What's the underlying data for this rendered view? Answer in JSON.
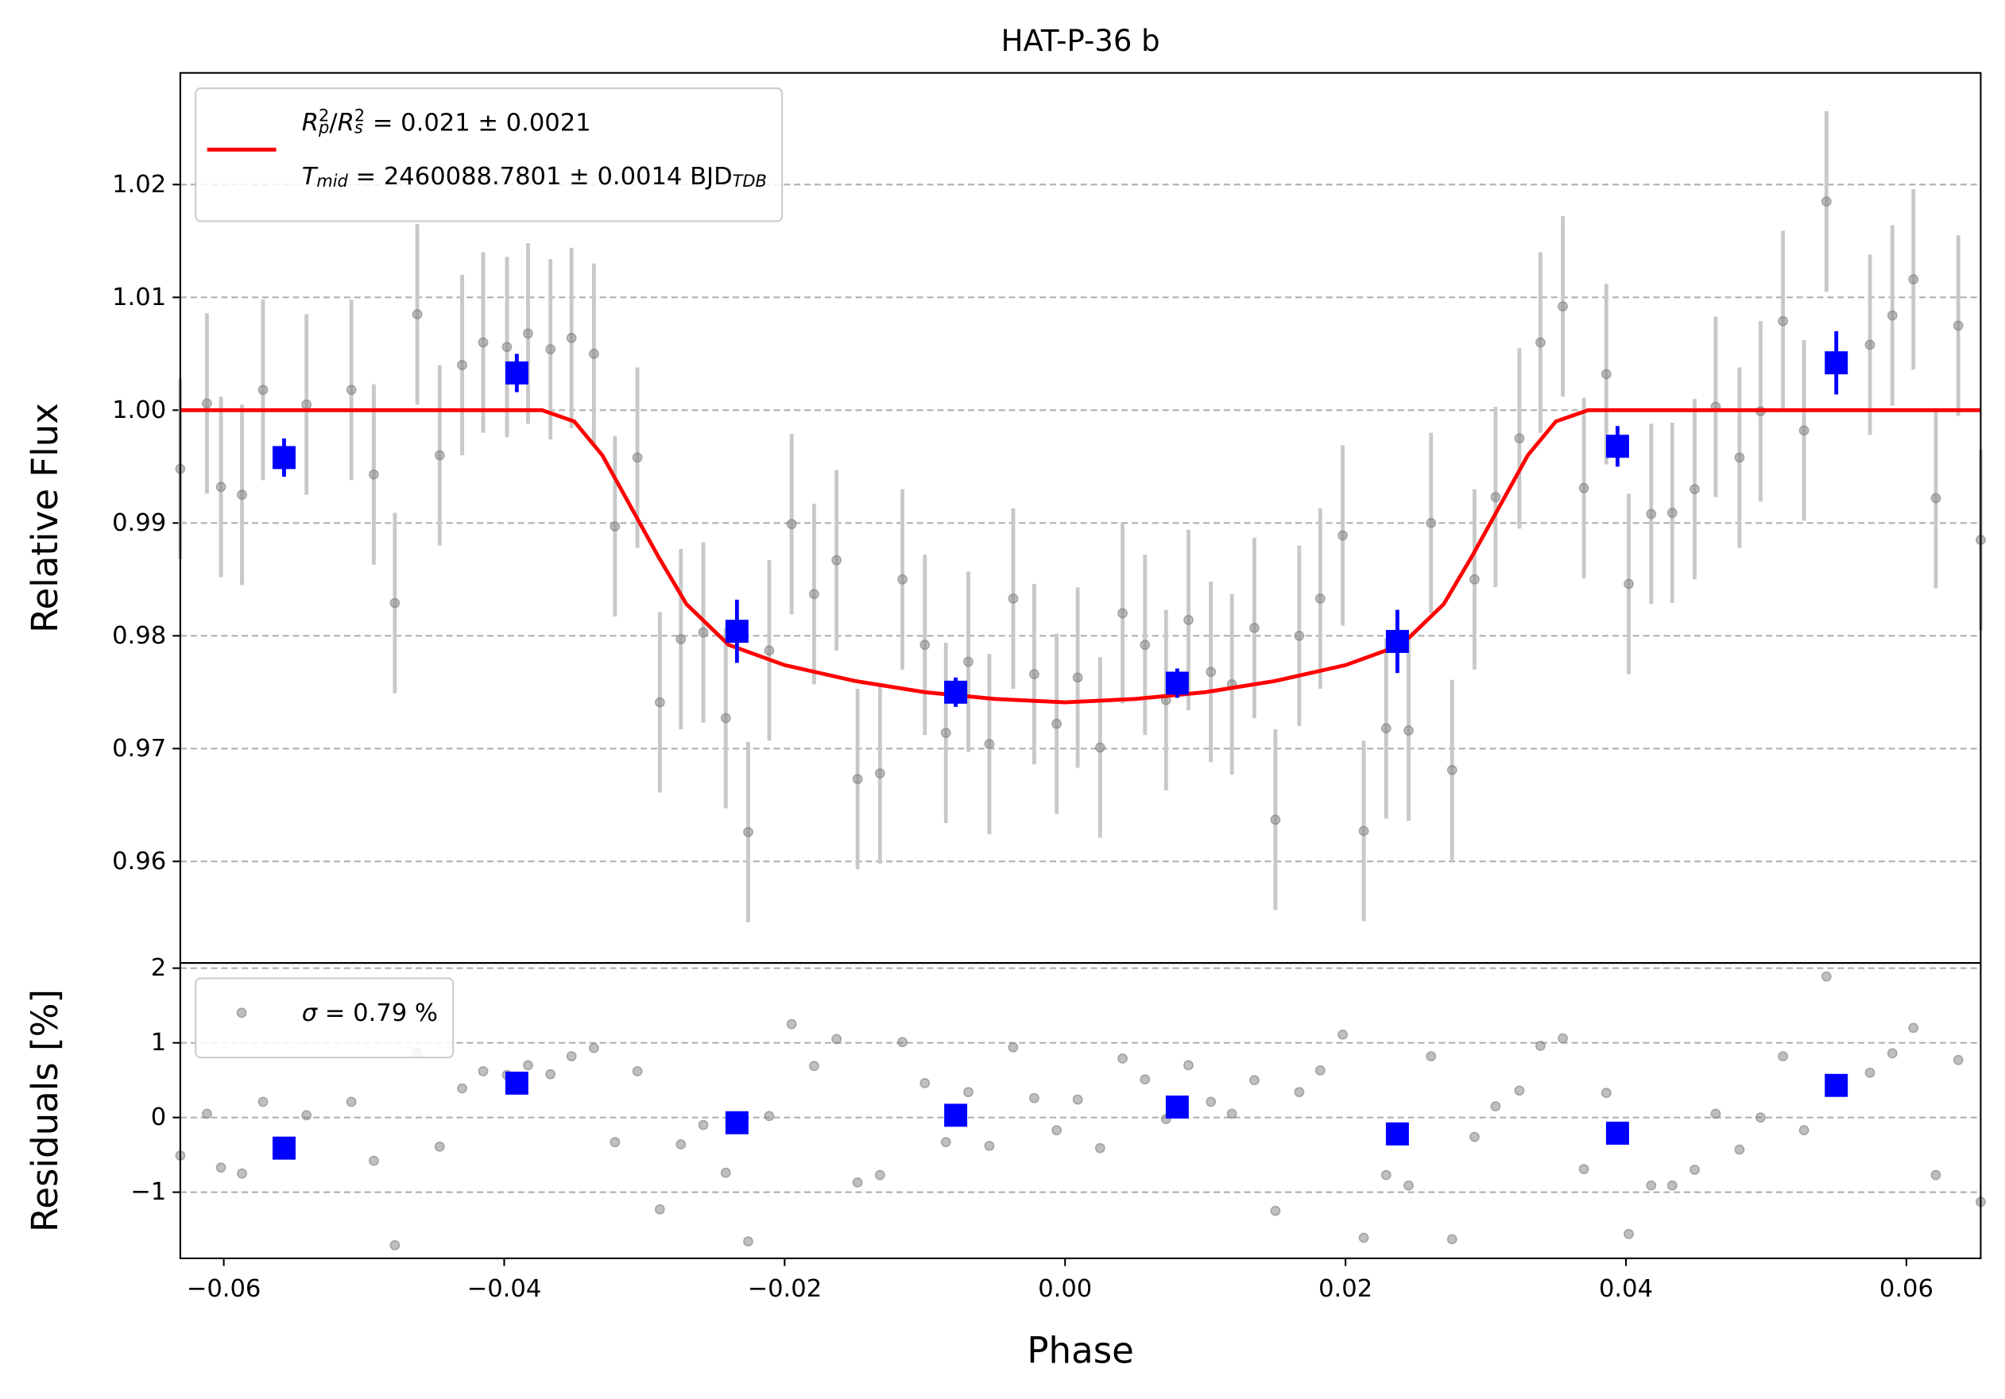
{
  "chart_data": [
    {
      "type": "scatter",
      "title": "HAT-P-36 b",
      "ylabel": "Relative Flux",
      "xlim": [
        -0.0631,
        0.0653
      ],
      "ylim": [
        0.951,
        1.0299
      ],
      "yticks": [
        0.96,
        0.97,
        0.98,
        0.99,
        {
          "value": 1.0,
          "label": "1.00"
        },
        1.01,
        1.02
      ],
      "grid": true,
      "legend": "upper left",
      "series": [
        {
          "style": "points",
          "marker": "circle",
          "color": "#808080",
          "ecolor": "#c8c8c8",
          "yerr": 0.008,
          "x": [
            -0.0631,
            -0.0612,
            -0.0602,
            -0.0587,
            -0.0572,
            -0.0541,
            -0.0509,
            -0.0493,
            -0.0478,
            -0.0462,
            -0.0446,
            -0.043,
            -0.0415,
            -0.0398,
            -0.0383,
            -0.0367,
            -0.0352,
            -0.0336,
            -0.0321,
            -0.0305,
            -0.0289,
            -0.0274,
            -0.0258,
            -0.0242,
            -0.0226,
            -0.0211,
            -0.0195,
            -0.0179,
            -0.0163,
            -0.0148,
            -0.0132,
            -0.0116,
            -0.01,
            -0.0085,
            -0.0069,
            -0.0054,
            -0.0037,
            -0.0022,
            -0.0006,
            0.0009,
            0.0025,
            0.0041,
            0.0057,
            0.0072,
            0.0088,
            0.0104,
            0.0119,
            0.0135,
            0.015,
            0.0167,
            0.0182,
            0.0198,
            0.0213,
            0.0229,
            0.0245,
            0.0261,
            0.0276,
            0.0292,
            0.0307,
            0.0324,
            0.0339,
            0.0355,
            0.037,
            0.0386,
            0.0402,
            0.0418,
            0.0433,
            0.0449,
            0.0464,
            0.0481,
            0.0496,
            0.0512,
            0.0527,
            0.0543,
            0.0574,
            0.059,
            0.0605,
            0.0621,
            0.0637,
            0.0653
          ],
          "values": [
            0.9948,
            1.0006,
            0.9932,
            0.9925,
            1.0018,
            1.0005,
            1.0018,
            0.9943,
            0.9829,
            1.0085,
            0.996,
            1.004,
            1.006,
            1.0056,
            1.0068,
            1.0054,
            1.0064,
            1.005,
            0.9897,
            0.9958,
            0.9741,
            0.9797,
            0.9803,
            0.9727,
            0.9626,
            0.9787,
            0.9899,
            0.9837,
            0.9867,
            0.9673,
            0.9678,
            0.985,
            0.9792,
            0.9714,
            0.9777,
            0.9704,
            0.9833,
            0.9766,
            0.9722,
            0.9763,
            0.9701,
            0.982,
            0.9792,
            0.9743,
            0.9814,
            0.9768,
            0.9757,
            0.9807,
            0.9637,
            0.98,
            0.9833,
            0.9889,
            0.9627,
            0.9718,
            0.9716,
            0.99,
            0.9681,
            0.985,
            0.9923,
            0.9975,
            1.006,
            1.0092,
            0.9931,
            1.0032,
            0.9846,
            0.9908,
            0.9909,
            0.993,
            1.0003,
            0.9958,
            0.9999,
            1.0079,
            0.9982,
            1.0185,
            1.0058,
            1.0084,
            1.0116,
            0.9922,
            1.0075,
            0.9885
          ]
        },
        {
          "style": "line",
          "color": "red",
          "name": [
            [
              {
                "text": "R",
                "style": "i"
              },
              {
                "text": "p",
                "style": "sub-i"
              },
              {
                "text": "2",
                "style": "sup"
              },
              {
                "text": "/",
                "style": "n"
              },
              {
                "text": "R",
                "style": "i"
              },
              {
                "text": "s",
                "style": "sub-i"
              },
              {
                "text": "2",
                "style": "sup"
              },
              {
                "text": " = 0.021 ± 0.0021",
                "style": "n"
              }
            ],
            [
              {
                "text": "T",
                "style": "i"
              },
              {
                "text": "mid",
                "style": "sub-i"
              },
              {
                "text": " = 2460088.7801 ± 0.0014 BJD",
                "style": "n"
              },
              {
                "text": "TDB",
                "style": "sub-i"
              }
            ]
          ],
          "x": [
            -0.0631,
            -0.0373,
            -0.035,
            -0.033,
            -0.031,
            -0.029,
            -0.027,
            -0.024,
            -0.02,
            -0.015,
            -0.01,
            -0.005,
            0,
            0.005,
            0.01,
            0.015,
            0.02,
            0.024,
            0.027,
            0.029,
            0.031,
            0.033,
            0.035,
            0.0373,
            0.0653
          ],
          "values": [
            1,
            1,
            0.999,
            0.996,
            0.9915,
            0.987,
            0.9828,
            0.9792,
            0.9774,
            0.976,
            0.975,
            0.9744,
            0.9741,
            0.9744,
            0.975,
            0.976,
            0.9774,
            0.9792,
            0.9828,
            0.987,
            0.9915,
            0.996,
            0.999,
            1,
            1
          ]
        },
        {
          "style": "points",
          "marker": "square",
          "color": "blue",
          "ecolor": "blue",
          "x": [
            -0.0557,
            -0.0391,
            -0.0234,
            -0.0078,
            0.008,
            0.0237,
            0.0394,
            0.055
          ],
          "values": [
            0.9958,
            1.0033,
            0.9804,
            0.975,
            0.9758,
            0.9795,
            0.9968,
            1.0042
          ],
          "yerr": [
            0.0017,
            0.0017,
            0.0028,
            0.0013,
            0.0013,
            0.0028,
            0.0018,
            0.0028
          ]
        }
      ]
    },
    {
      "type": "scatter",
      "ylabel": "Residuals [%]",
      "xlabel": "Phase",
      "xlim": [
        -0.0631,
        0.0653
      ],
      "ylim": [
        -1.886,
        2.07
      ],
      "xticks": [
        {
          "value": -0.06,
          "label": "−0.06"
        },
        {
          "value": -0.04,
          "label": "−0.04"
        },
        {
          "value": -0.02,
          "label": "−0.02"
        },
        {
          "value": 0,
          "label": "0.00"
        },
        0.02,
        0.04,
        0.06
      ],
      "yticks": [
        {
          "value": -1,
          "label": "−1"
        },
        0,
        1,
        2
      ],
      "grid": true,
      "legend": "upper left",
      "series": [
        {
          "style": "points",
          "marker": "circle",
          "color": "#808080",
          "name": [
            [
              {
                "text": "σ",
                "style": "i"
              },
              {
                "text": " = 0.79 %",
                "style": "n"
              }
            ]
          ],
          "x": [
            -0.0631,
            -0.0612,
            -0.0602,
            -0.0587,
            -0.0572,
            -0.0541,
            -0.0509,
            -0.0493,
            -0.0478,
            -0.0462,
            -0.0446,
            -0.043,
            -0.0415,
            -0.0398,
            -0.0383,
            -0.0367,
            -0.0352,
            -0.0336,
            -0.0321,
            -0.0305,
            -0.0289,
            -0.0274,
            -0.0258,
            -0.0242,
            -0.0226,
            -0.0211,
            -0.0195,
            -0.0179,
            -0.0163,
            -0.0148,
            -0.0132,
            -0.0116,
            -0.01,
            -0.0085,
            -0.0069,
            -0.0054,
            -0.0037,
            -0.0022,
            -0.0006,
            0.0009,
            0.0025,
            0.0041,
            0.0057,
            0.0072,
            0.0088,
            0.0104,
            0.0119,
            0.0135,
            0.015,
            0.0167,
            0.0182,
            0.0198,
            0.0213,
            0.0229,
            0.0245,
            0.0261,
            0.0276,
            0.0292,
            0.0307,
            0.0324,
            0.0339,
            0.0355,
            0.037,
            0.0386,
            0.0402,
            0.0418,
            0.0433,
            0.0449,
            0.0464,
            0.0481,
            0.0496,
            0.0512,
            0.0527,
            0.0543,
            0.0574,
            0.059,
            0.0605,
            0.0621,
            0.0637,
            0.0653
          ],
          "values": [
            -0.51,
            0.05,
            -0.67,
            -0.75,
            0.21,
            0.03,
            0.21,
            -0.58,
            -1.71,
            0.86,
            -0.39,
            0.39,
            0.62,
            0.57,
            0.7,
            0.58,
            0.82,
            0.93,
            -0.33,
            0.62,
            -1.23,
            -0.36,
            -0.1,
            -0.74,
            -1.66,
            0.02,
            1.25,
            0.69,
            1.05,
            -0.87,
            -0.77,
            1.01,
            0.46,
            -0.33,
            0.34,
            -0.38,
            0.94,
            0.26,
            -0.17,
            0.24,
            -0.41,
            0.79,
            0.51,
            -0.02,
            0.7,
            0.21,
            0.05,
            0.5,
            -1.25,
            0.34,
            0.63,
            1.11,
            -1.61,
            -0.77,
            -0.91,
            0.82,
            -1.63,
            -0.26,
            0.15,
            0.36,
            0.96,
            1.06,
            -0.69,
            0.33,
            -1.56,
            -0.91,
            -0.91,
            -0.7,
            0.05,
            -0.43,
            0.0,
            0.82,
            -0.17,
            1.89,
            0.6,
            0.86,
            1.2,
            -0.77,
            0.77,
            -1.13
          ]
        },
        {
          "style": "points",
          "marker": "square",
          "color": "blue",
          "x": [
            -0.0557,
            -0.0391,
            -0.0234,
            -0.0078,
            0.008,
            0.0237,
            0.0394,
            0.055
          ],
          "values": [
            -0.41,
            0.46,
            -0.07,
            0.03,
            0.14,
            -0.22,
            -0.21,
            0.43
          ]
        }
      ]
    }
  ]
}
